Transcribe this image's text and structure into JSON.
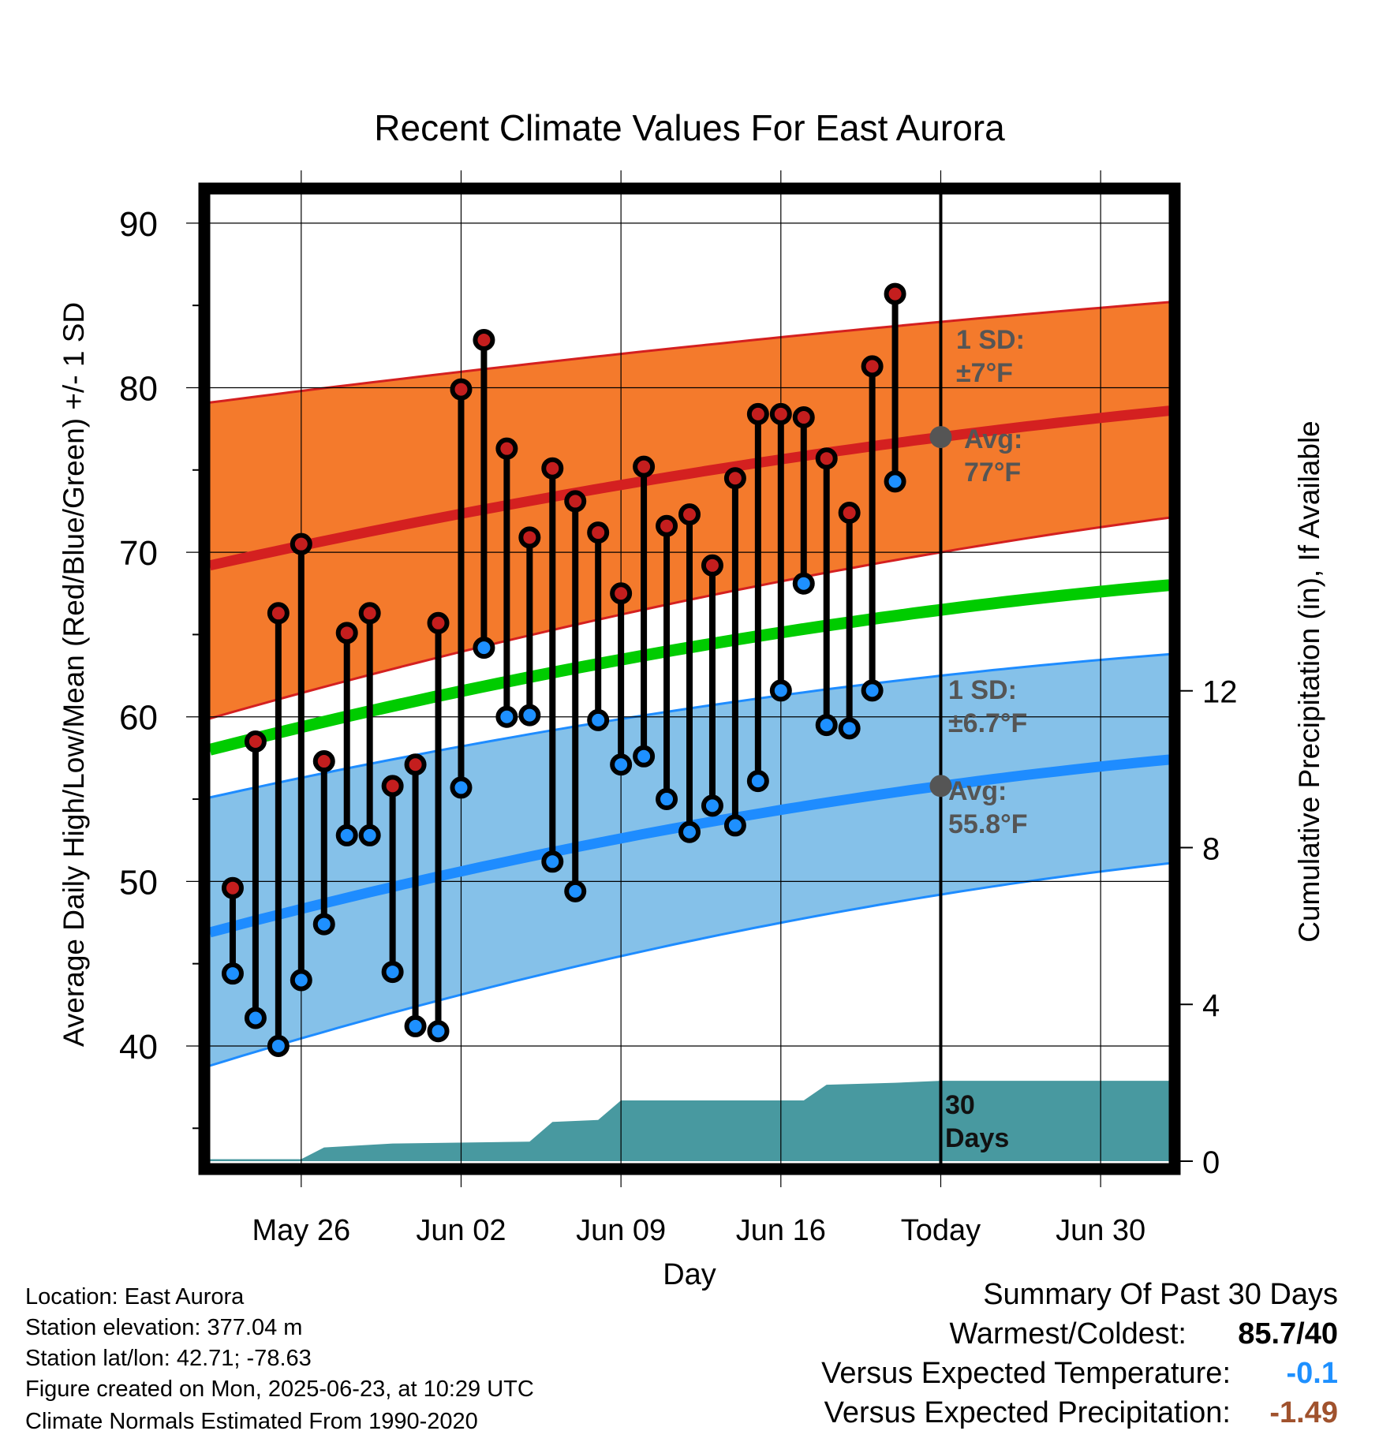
{
  "chart_data": {
    "type": "line",
    "title": "Recent Climate Values For East Aurora",
    "xlabel": "Day",
    "ylabel": "Average Daily High/Low/Mean (Red/Blue/Green) +/- 1 SD",
    "y2label": "Cumulative Precipitation (in), If Available",
    "x_range": [
      "2025-05-22",
      "2025-07-03"
    ],
    "ylim": [
      33,
      91
    ],
    "y2lim": [
      0,
      24.35
    ],
    "x_ticks": [
      {
        "date": "2025-05-26",
        "label": "May 26"
      },
      {
        "date": "2025-06-02",
        "label": "Jun 02"
      },
      {
        "date": "2025-06-09",
        "label": "Jun 09"
      },
      {
        "date": "2025-06-16",
        "label": "Jun 16"
      },
      {
        "date": "2025-06-23",
        "label": "Today"
      },
      {
        "date": "2025-06-30",
        "label": "Jun 30"
      }
    ],
    "y_ticks": [
      40,
      50,
      60,
      70,
      80,
      90
    ],
    "y_tick_labels": [
      "40",
      "50",
      "60",
      "70",
      "80",
      "90"
    ],
    "y2_ticks": [
      0,
      4,
      8,
      12
    ],
    "y2_tick_labels": [
      "0",
      "4",
      "8",
      "12"
    ],
    "grid": true,
    "today": "2025-06-23",
    "dates": [
      "2025-05-23",
      "2025-05-24",
      "2025-05-25",
      "2025-05-26",
      "2025-05-27",
      "2025-05-28",
      "2025-05-29",
      "2025-05-30",
      "2025-05-31",
      "2025-06-01",
      "2025-06-02",
      "2025-06-03",
      "2025-06-04",
      "2025-06-05",
      "2025-06-06",
      "2025-06-07",
      "2025-06-08",
      "2025-06-09",
      "2025-06-10",
      "2025-06-11",
      "2025-06-12",
      "2025-06-13",
      "2025-06-14",
      "2025-06-15",
      "2025-06-16",
      "2025-06-17",
      "2025-06-18",
      "2025-06-19",
      "2025-06-20",
      "2025-06-21",
      "2025-06-22"
    ],
    "highs": [
      49.6,
      58.5,
      66.3,
      70.5,
      57.3,
      65.1,
      66.3,
      55.8,
      57.1,
      65.7,
      79.9,
      82.9,
      76.3,
      70.9,
      75.1,
      73.1,
      71.2,
      67.5,
      75.2,
      71.6,
      72.3,
      69.2,
      74.5,
      78.4,
      78.4,
      78.2,
      75.7,
      72.4,
      81.3,
      85.7,
      null
    ],
    "lows": [
      44.4,
      41.7,
      40.0,
      44.0,
      47.4,
      52.8,
      52.8,
      44.5,
      41.2,
      40.9,
      55.7,
      64.2,
      60.0,
      60.1,
      51.2,
      49.4,
      59.8,
      57.1,
      57.6,
      55.0,
      53.0,
      54.6,
      53.4,
      56.1,
      61.6,
      68.1,
      59.5,
      59.3,
      61.6,
      74.3,
      null
    ],
    "normals": {
      "dates": [
        "2025-05-22",
        "2025-06-23",
        "2025-07-03"
      ],
      "high_mean": [
        69.2,
        77.0,
        78.6
      ],
      "high_upper": [
        79.1,
        84.0,
        85.2
      ],
      "high_lower": [
        59.9,
        70.0,
        72.1
      ],
      "mean": [
        58.0,
        66.5,
        68.0
      ],
      "low_mean": [
        46.9,
        55.8,
        57.4
      ],
      "low_upper": [
        55.1,
        62.5,
        63.8
      ],
      "low_lower": [
        38.8,
        49.2,
        51.1
      ]
    },
    "precip": {
      "dates": [
        "2025-05-22",
        "2025-05-26",
        "2025-05-27",
        "2025-05-30",
        "2025-06-05",
        "2025-06-06",
        "2025-06-08",
        "2025-06-09",
        "2025-06-17",
        "2025-06-18",
        "2025-06-21",
        "2025-06-23",
        "2025-07-03"
      ],
      "values": [
        0.05,
        0.05,
        0.35,
        0.45,
        0.5,
        1.0,
        1.05,
        1.55,
        1.55,
        1.95,
        2.0,
        2.05,
        2.05
      ]
    },
    "annotations": {
      "high_sd_line1": "1 SD:",
      "high_sd_line2": "±7°F",
      "high_avg_line1": "Avg:",
      "high_avg_line2": "77°F",
      "low_sd_line1": "1 SD:",
      "low_sd_line2": "±6.7°F",
      "low_avg_line1": "Avg:",
      "low_avg_line2": "55.8°F",
      "days_line1": "30",
      "days_line2": "Days"
    },
    "colors": {
      "high_band": "#f47a2c",
      "high_line": "#d42020",
      "low_band": "#85c1e9",
      "low_line": "#1e8cff",
      "mean_line": "#00cc00",
      "precip": "#4899a0",
      "high_dot": "#c41e1e",
      "low_dot": "#1e90ff",
      "annotation": "#555555"
    }
  },
  "footer": {
    "location": "Location: East Aurora",
    "elevation": "Station elevation: 377.04 m",
    "latlon": "Station lat/lon: 42.71; -78.63",
    "created": "Figure created on Mon, 2025-06-23, at 10:29 UTC",
    "normals": "Climate Normals Estimated From 1990-2020"
  },
  "summary": {
    "title": "Summary Of Past 30 Days",
    "warmest_label": "Warmest/Coldest:",
    "warmest_value": "85.7/40",
    "temp_label": "Versus Expected Temperature:",
    "temp_value": "-0.1",
    "temp_color": "#1e90ff",
    "precip_label": "Versus Expected Precipitation:",
    "precip_value": "-1.49",
    "precip_color": "#a0522d"
  }
}
